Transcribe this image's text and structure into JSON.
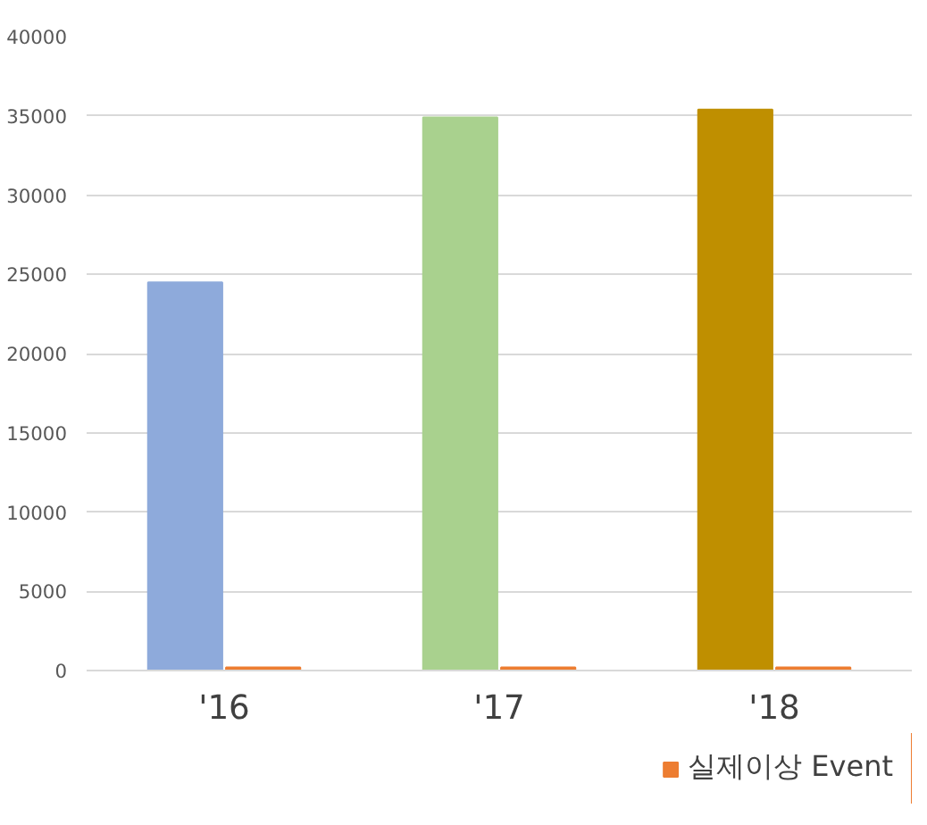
{
  "chart_data": {
    "type": "bar",
    "categories": [
      "'16",
      "'17",
      "'18"
    ],
    "series": [
      {
        "colors": [
          "#8eaadb",
          "#a9d18e",
          "#bf8f00"
        ],
        "values": [
          24500,
          34900,
          35400
        ]
      },
      {
        "name": "실제이상 Event",
        "color": "#ed7d31",
        "values": [
          200,
          200,
          200
        ]
      }
    ],
    "ylim": [
      0,
      40000
    ],
    "yticks": [
      0,
      5000,
      10000,
      15000,
      20000,
      25000,
      30000,
      35000,
      40000
    ],
    "grid": "y",
    "legend": "bottom right"
  }
}
